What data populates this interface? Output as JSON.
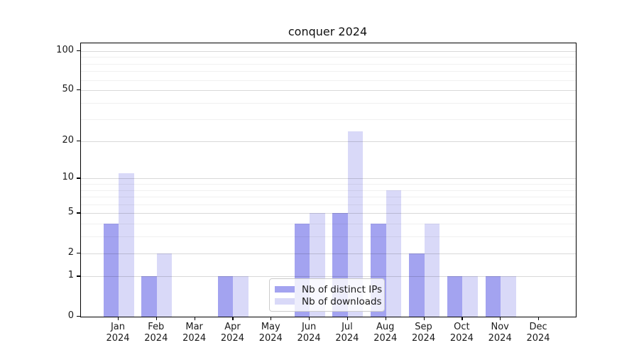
{
  "chart_data": {
    "type": "bar",
    "title": "conquer 2024",
    "categories": [
      "Jan 2024",
      "Feb 2024",
      "Mar 2024",
      "Apr 2024",
      "May 2024",
      "Jun 2024",
      "Jul 2024",
      "Aug 2024",
      "Sep 2024",
      "Oct 2024",
      "Nov 2024",
      "Dec 2024"
    ],
    "x_tick_line1": [
      "Jan",
      "Feb",
      "Mar",
      "Apr",
      "May",
      "Jun",
      "Jul",
      "Aug",
      "Sep",
      "Oct",
      "Nov",
      "Dec"
    ],
    "x_tick_line2": "2024",
    "series": [
      {
        "name": "Nb of distinct IPs",
        "color": "#a3a3f0",
        "values": [
          4,
          1,
          0,
          1,
          0,
          4,
          5,
          4,
          2,
          1,
          1,
          0
        ]
      },
      {
        "name": "Nb of downloads",
        "color": "#d9d9f8",
        "values": [
          11,
          2,
          0,
          1,
          0,
          5,
          24,
          8,
          4,
          1,
          1,
          0
        ]
      }
    ],
    "y_axis": {
      "scale": "log1p",
      "tick_values": [
        0,
        1,
        2,
        5,
        10,
        20,
        50,
        100
      ],
      "minor_grid_values": [
        3,
        4,
        6,
        7,
        8,
        9,
        30,
        40,
        60,
        70,
        80,
        90
      ],
      "max": 114
    },
    "grid": true,
    "legend_position": "lower-center"
  },
  "colors": {
    "series_ips": "#a3a3f0",
    "series_downloads": "#d9d9f8",
    "major_grid": "rgba(0,0,0,0.15)",
    "minor_grid": "rgba(0,0,0,0.06)",
    "spine": "#000000"
  }
}
